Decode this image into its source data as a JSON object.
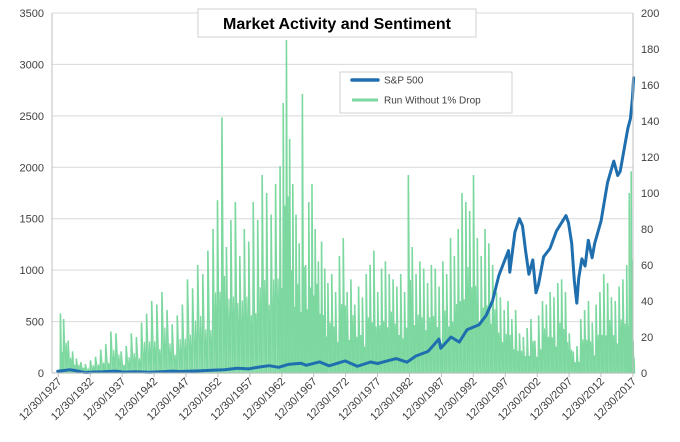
{
  "chart_data": {
    "type": "bar+line",
    "title": "Market Activity and Sentiment",
    "x_tick_labels": [
      "12/30/1927",
      "12/30/1932",
      "12/30/1937",
      "12/30/1942",
      "12/30/1947",
      "12/30/1952",
      "12/30/1957",
      "12/30/1962",
      "12/30/1967",
      "12/30/1972",
      "12/30/1977",
      "12/30/1982",
      "12/30/1987",
      "12/30/1992",
      "12/30/1997",
      "12/30/2002",
      "12/30/2007",
      "12/30/2012",
      "12/30/2017"
    ],
    "x_range": [
      1927,
      2018
    ],
    "y_left": {
      "ylim": [
        0,
        3500
      ],
      "ticks": [
        "0",
        "500",
        "1000",
        "1500",
        "2000",
        "2500",
        "3000",
        "3500"
      ]
    },
    "y_right": {
      "ylim": [
        0,
        200
      ],
      "ticks": [
        "0",
        "20",
        "40",
        "60",
        "80",
        "100",
        "120",
        "140",
        "160",
        "180",
        "200"
      ]
    },
    "grid": "horizontal",
    "legend": {
      "placement": "top-right",
      "items": [
        "S&P 500",
        "Run Without 1% Drop"
      ]
    },
    "colors": {
      "sp500": "#1F6FAF",
      "run": "#7DD8A0",
      "run_fill": "#A8E6BF",
      "grid": "#D9D9D9",
      "axis": "#BFBFBF"
    },
    "series": [
      {
        "name": "S&P 500",
        "axis": "left",
        "points": [
          [
            1927.9,
            17
          ],
          [
            1928.9,
            24
          ],
          [
            1929.7,
            31
          ],
          [
            1930.5,
            25
          ],
          [
            1931.9,
            8
          ],
          [
            1932.5,
            5
          ],
          [
            1933.5,
            10
          ],
          [
            1935,
            12
          ],
          [
            1937,
            18
          ],
          [
            1938.3,
            9
          ],
          [
            1940,
            12
          ],
          [
            1942.3,
            8
          ],
          [
            1944,
            12
          ],
          [
            1946,
            18
          ],
          [
            1947,
            15
          ],
          [
            1950,
            20
          ],
          [
            1952,
            26
          ],
          [
            1954,
            32
          ],
          [
            1956,
            46
          ],
          [
            1957.8,
            40
          ],
          [
            1959.5,
            58
          ],
          [
            1961,
            71
          ],
          [
            1962.5,
            55
          ],
          [
            1964,
            84
          ],
          [
            1966,
            95
          ],
          [
            1966.8,
            75
          ],
          [
            1968.9,
            108
          ],
          [
            1970.4,
            70
          ],
          [
            1972.9,
            118
          ],
          [
            1974.8,
            65
          ],
          [
            1976.9,
            107
          ],
          [
            1978,
            92
          ],
          [
            1980.9,
            140
          ],
          [
            1982.6,
            105
          ],
          [
            1984,
            165
          ],
          [
            1985.9,
            210
          ],
          [
            1987.6,
            330
          ],
          [
            1987.9,
            240
          ],
          [
            1989.5,
            350
          ],
          [
            1990.8,
            300
          ],
          [
            1992,
            420
          ],
          [
            1993.9,
            470
          ],
          [
            1995,
            560
          ],
          [
            1996,
            700
          ],
          [
            1997,
            950
          ],
          [
            1998.5,
            1190
          ],
          [
            1998.7,
            980
          ],
          [
            1999.5,
            1370
          ],
          [
            2000.2,
            1500
          ],
          [
            2000.7,
            1430
          ],
          [
            2001.2,
            1180
          ],
          [
            2001.7,
            960
          ],
          [
            2002.3,
            1100
          ],
          [
            2002.8,
            780
          ],
          [
            2003.2,
            860
          ],
          [
            2004,
            1130
          ],
          [
            2005,
            1210
          ],
          [
            2006,
            1380
          ],
          [
            2007.5,
            1530
          ],
          [
            2007.9,
            1460
          ],
          [
            2008.4,
            1260
          ],
          [
            2008.8,
            900
          ],
          [
            2009.2,
            680
          ],
          [
            2009.5,
            920
          ],
          [
            2010,
            1110
          ],
          [
            2010.5,
            1040
          ],
          [
            2011,
            1290
          ],
          [
            2011.6,
            1120
          ],
          [
            2012,
            1260
          ],
          [
            2013,
            1480
          ],
          [
            2014,
            1850
          ],
          [
            2015,
            2060
          ],
          [
            2015.6,
            1920
          ],
          [
            2016,
            1960
          ],
          [
            2016.8,
            2240
          ],
          [
            2017.2,
            2380
          ],
          [
            2017.6,
            2470
          ],
          [
            2017.9,
            2670
          ],
          [
            2018.1,
            2870
          ]
        ]
      },
      {
        "name": "Run Without 1% Drop",
        "axis": "right",
        "peaks": [
          [
            1928.3,
            33
          ],
          [
            1928.8,
            30
          ],
          [
            1929.5,
            18
          ],
          [
            1930.2,
            12
          ],
          [
            1930.8,
            8
          ],
          [
            1931.5,
            6
          ],
          [
            1932.2,
            5
          ],
          [
            1933,
            7
          ],
          [
            1933.8,
            9
          ],
          [
            1934.6,
            13
          ],
          [
            1935.4,
            16
          ],
          [
            1936.2,
            23
          ],
          [
            1937,
            22
          ],
          [
            1937.8,
            12
          ],
          [
            1938.6,
            15
          ],
          [
            1939.4,
            22
          ],
          [
            1940.2,
            20
          ],
          [
            1941,
            28
          ],
          [
            1941.8,
            33
          ],
          [
            1942.6,
            40
          ],
          [
            1943.4,
            38
          ],
          [
            1944.2,
            45
          ],
          [
            1945,
            35
          ],
          [
            1945.8,
            27
          ],
          [
            1946.6,
            32
          ],
          [
            1947.4,
            38
          ],
          [
            1948.2,
            52
          ],
          [
            1949,
            47
          ],
          [
            1949.8,
            60
          ],
          [
            1950.6,
            55
          ],
          [
            1951.4,
            68
          ],
          [
            1952.2,
            80
          ],
          [
            1952.9,
            96
          ],
          [
            1953.6,
            142
          ],
          [
            1954.3,
            70
          ],
          [
            1955,
            85
          ],
          [
            1955.7,
            95
          ],
          [
            1956.4,
            65
          ],
          [
            1957.1,
            80
          ],
          [
            1957.8,
            73
          ],
          [
            1958.5,
            95
          ],
          [
            1959.2,
            85
          ],
          [
            1959.9,
            110
          ],
          [
            1960.6,
            100
          ],
          [
            1961.3,
            88
          ],
          [
            1962,
            105
          ],
          [
            1962.7,
            115
          ],
          [
            1963.2,
            150
          ],
          [
            1963.7,
            185
          ],
          [
            1964.2,
            130
          ],
          [
            1964.7,
            105
          ],
          [
            1965.2,
            88
          ],
          [
            1965.7,
            72
          ],
          [
            1966.2,
            155
          ],
          [
            1966.7,
            60
          ],
          [
            1967.2,
            95
          ],
          [
            1967.7,
            105
          ],
          [
            1968.2,
            80
          ],
          [
            1968.7,
            62
          ],
          [
            1969.2,
            73
          ],
          [
            1969.7,
            58
          ],
          [
            1970.2,
            50
          ],
          [
            1970.8,
            55
          ],
          [
            1971.4,
            45
          ],
          [
            1972,
            65
          ],
          [
            1972.6,
            75
          ],
          [
            1973.2,
            45
          ],
          [
            1973.8,
            52
          ],
          [
            1974.4,
            38
          ],
          [
            1975,
            48
          ],
          [
            1975.6,
            42
          ],
          [
            1976.2,
            55
          ],
          [
            1976.8,
            60
          ],
          [
            1977.4,
            68
          ],
          [
            1978,
            45
          ],
          [
            1978.6,
            58
          ],
          [
            1979.2,
            62
          ],
          [
            1979.8,
            55
          ],
          [
            1980.4,
            52
          ],
          [
            1981,
            48
          ],
          [
            1981.6,
            55
          ],
          [
            1982.2,
            45
          ],
          [
            1982.8,
            110
          ],
          [
            1983.4,
            70
          ],
          [
            1984,
            55
          ],
          [
            1984.6,
            62
          ],
          [
            1985.2,
            58
          ],
          [
            1985.8,
            50
          ],
          [
            1986.4,
            60
          ],
          [
            1987,
            58
          ],
          [
            1987.6,
            48
          ],
          [
            1988.2,
            62
          ],
          [
            1988.8,
            55
          ],
          [
            1989.4,
            75
          ],
          [
            1990,
            65
          ],
          [
            1990.6,
            80
          ],
          [
            1991.2,
            100
          ],
          [
            1991.8,
            95
          ],
          [
            1992.4,
            90
          ],
          [
            1993,
            110
          ],
          [
            1993.6,
            75
          ],
          [
            1994.2,
            65
          ],
          [
            1994.8,
            80
          ],
          [
            1995.4,
            72
          ],
          [
            1996,
            60
          ],
          [
            1996.6,
            45
          ],
          [
            1997.2,
            42
          ],
          [
            1997.8,
            35
          ],
          [
            1998.4,
            40
          ],
          [
            1999,
            30
          ],
          [
            1999.6,
            35
          ],
          [
            2000.2,
            22
          ],
          [
            2000.8,
            20
          ],
          [
            2001.4,
            25
          ],
          [
            2002,
            30
          ],
          [
            2002.6,
            18
          ],
          [
            2003.2,
            32
          ],
          [
            2003.8,
            40
          ],
          [
            2004.4,
            38
          ],
          [
            2005,
            45
          ],
          [
            2005.6,
            42
          ],
          [
            2006.2,
            50
          ],
          [
            2006.8,
            52
          ],
          [
            2007.4,
            45
          ],
          [
            2008,
            22
          ],
          [
            2008.6,
            12
          ],
          [
            2009.2,
            15
          ],
          [
            2009.8,
            30
          ],
          [
            2010.4,
            35
          ],
          [
            2011,
            40
          ],
          [
            2011.6,
            28
          ],
          [
            2012.2,
            38
          ],
          [
            2012.8,
            45
          ],
          [
            2013.4,
            55
          ],
          [
            2014,
            50
          ],
          [
            2014.6,
            42
          ],
          [
            2015.2,
            40
          ],
          [
            2015.8,
            48
          ],
          [
            2016.4,
            52
          ],
          [
            2017,
            60
          ],
          [
            2017.4,
            100
          ],
          [
            2017.7,
            112
          ],
          [
            2018,
            18
          ]
        ]
      }
    ]
  }
}
